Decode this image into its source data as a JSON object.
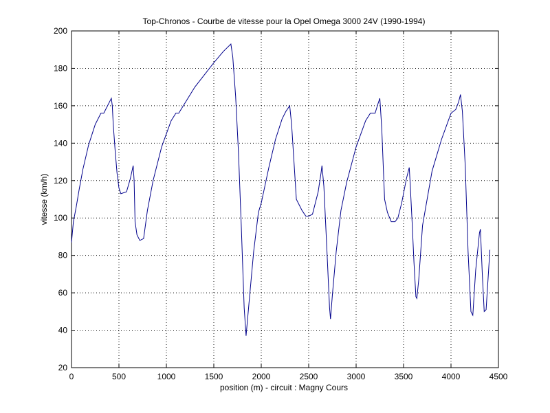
{
  "chart_data": {
    "type": "line",
    "title": "Top-Chronos - Courbe de vitesse pour la Opel Omega 3000 24V (1990-1994)",
    "xlabel": "position (m) - circuit : Magny Cours",
    "ylabel": "vitesse (km/h)",
    "xlim": [
      0,
      4500
    ],
    "ylim": [
      20,
      200
    ],
    "xticks": [
      0,
      500,
      1000,
      1500,
      2000,
      2500,
      3000,
      3500,
      4000,
      4500
    ],
    "yticks": [
      20,
      40,
      60,
      80,
      100,
      120,
      140,
      160,
      180,
      200
    ],
    "xtick_labels": [
      "0",
      "500",
      "1000",
      "1500",
      "2000",
      "2500",
      "3000",
      "3500",
      "4000",
      "4500"
    ],
    "ytick_labels": [
      "20",
      "40",
      "60",
      "80",
      "100",
      "120",
      "140",
      "160",
      "180",
      "200"
    ],
    "grid": true,
    "line_color": "#00008b",
    "series": [
      {
        "x": [
          0,
          20,
          50,
          80,
          120,
          180,
          250,
          310,
          340,
          380,
          420,
          430,
          440,
          460,
          480,
          500,
          520,
          580,
          620,
          650,
          660,
          670,
          690,
          720,
          760,
          800,
          860,
          950,
          1050,
          1100,
          1130,
          1300,
          1500,
          1600,
          1680,
          1700,
          1730,
          1760,
          1790,
          1820,
          1840,
          1870,
          1920,
          1970,
          2000,
          2080,
          2150,
          2220,
          2260,
          2300,
          2320,
          2370,
          2430,
          2470,
          2500,
          2540,
          2600,
          2630,
          2640,
          2660,
          2690,
          2720,
          2730,
          2750,
          2790,
          2840,
          2900,
          3000,
          3100,
          3150,
          3200,
          3230,
          3250,
          3270,
          3300,
          3330,
          3370,
          3410,
          3440,
          3480,
          3530,
          3560,
          3570,
          3590,
          3610,
          3630,
          3640,
          3660,
          3700,
          3800,
          3900,
          4000,
          4050,
          4080,
          4100,
          4120,
          4150,
          4180,
          4210,
          4230,
          4260,
          4300,
          4310,
          4330,
          4350,
          4370,
          4410
        ],
        "y": [
          87,
          98,
          106,
          115,
          126,
          139,
          150,
          156,
          156,
          160,
          164,
          160,
          150,
          136,
          124,
          116,
          113,
          114,
          121,
          128,
          120,
          98,
          91,
          88,
          89,
          104,
          120,
          138,
          152,
          156,
          156,
          170,
          183,
          189,
          193,
          186,
          165,
          135,
          95,
          52,
          37,
          54,
          82,
          103,
          108,
          127,
          142,
          153,
          157,
          160,
          150,
          110,
          104,
          101,
          101,
          102,
          114,
          124,
          128,
          117,
          85,
          52,
          46,
          59,
          82,
          104,
          119,
          138,
          152,
          156,
          156,
          161,
          164,
          148,
          110,
          103,
          98,
          98,
          100,
          108,
          121,
          127,
          118,
          98,
          76,
          58,
          57,
          67,
          96,
          125,
          142,
          156,
          158,
          162,
          166,
          157,
          128,
          82,
          50,
          48,
          72,
          92,
          94,
          70,
          50,
          51,
          83
        ]
      }
    ]
  }
}
